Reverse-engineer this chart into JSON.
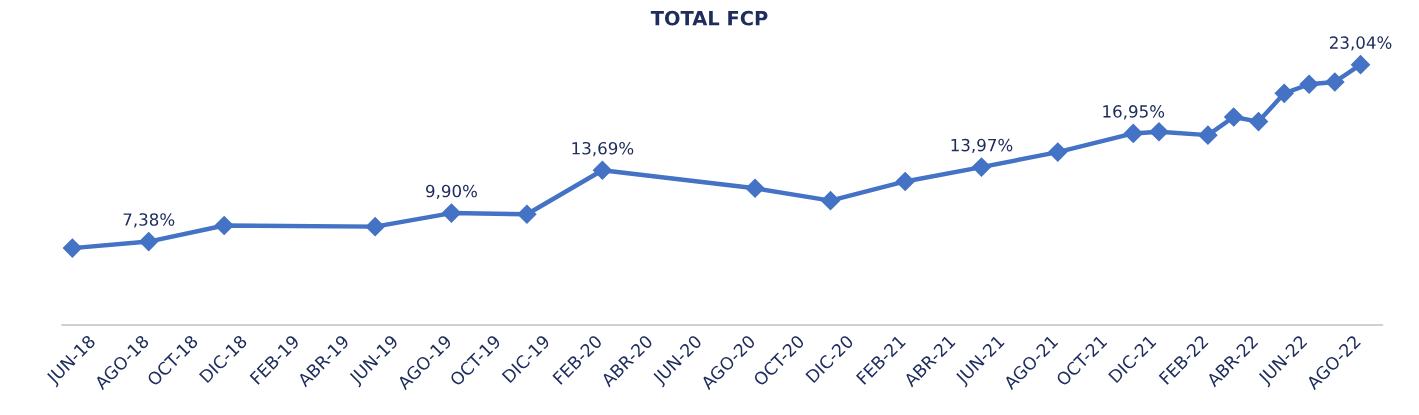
{
  "chart_data": {
    "type": "line",
    "title": "TOTAL FCP",
    "x": [
      "2018-06",
      "2018-09",
      "2018-12",
      "2019-06",
      "2019-09",
      "2019-12",
      "2020-03",
      "2020-09",
      "2020-12",
      "2021-03",
      "2021-06",
      "2021-09",
      "2021-12",
      "2022-01",
      "2022-03",
      "2022-04",
      "2022-05",
      "2022-06",
      "2022-07",
      "2022-08",
      "2022-09"
    ],
    "series": [
      {
        "color": "#4472c4",
        "values": [
          6.8,
          7.38,
          8.8,
          8.7,
          9.9,
          9.8,
          13.69,
          12.1,
          11.0,
          12.7,
          13.97,
          15.3,
          16.95,
          17.1,
          16.8,
          18.4,
          18.0,
          20.5,
          21.3,
          21.5,
          23.04
        ],
        "value_labels": [
          null,
          "7,38%",
          null,
          null,
          "9,90%",
          null,
          "13,69%",
          null,
          null,
          null,
          "13,97%",
          null,
          "16,95%",
          null,
          null,
          null,
          null,
          null,
          null,
          null,
          "23,04%"
        ]
      }
    ],
    "xlim": [
      "2018-05-20",
      "2022-09-27"
    ],
    "xticks": [
      {
        "value": "2018-06",
        "label": "JUN-18"
      },
      {
        "value": "2018-08",
        "label": "AGO-18"
      },
      {
        "value": "2018-10",
        "label": "OCT-18"
      },
      {
        "value": "2018-12",
        "label": "DIC-18"
      },
      {
        "value": "2019-02",
        "label": "FEB-19"
      },
      {
        "value": "2019-04",
        "label": "ABR-19"
      },
      {
        "value": "2019-06",
        "label": "JUN-19"
      },
      {
        "value": "2019-08",
        "label": "AGO-19"
      },
      {
        "value": "2019-10",
        "label": "OCT-19"
      },
      {
        "value": "2019-12",
        "label": "DIC-19"
      },
      {
        "value": "2020-02",
        "label": "FEB-20"
      },
      {
        "value": "2020-04",
        "label": "ABR-20"
      },
      {
        "value": "2020-06",
        "label": "JUN-20"
      },
      {
        "value": "2020-08",
        "label": "AGO-20"
      },
      {
        "value": "2020-10",
        "label": "OCT-20"
      },
      {
        "value": "2020-12",
        "label": "DIC-20"
      },
      {
        "value": "2021-02",
        "label": "FEB-21"
      },
      {
        "value": "2021-04",
        "label": "ABR-21"
      },
      {
        "value": "2021-06",
        "label": "JUN-21"
      },
      {
        "value": "2021-08",
        "label": "AGO-21"
      },
      {
        "value": "2021-10",
        "label": "OCT-21"
      },
      {
        "value": "2021-12",
        "label": "DIC-21"
      },
      {
        "value": "2022-02",
        "label": "FEB-22"
      },
      {
        "value": "2022-04",
        "label": "ABR-22"
      },
      {
        "value": "2022-06",
        "label": "JUN-22"
      },
      {
        "value": "2022-08",
        "label": "AGO-22"
      }
    ],
    "tick_labels": "x",
    "grid": false,
    "marker": "diamond",
    "line_style": "solid"
  }
}
